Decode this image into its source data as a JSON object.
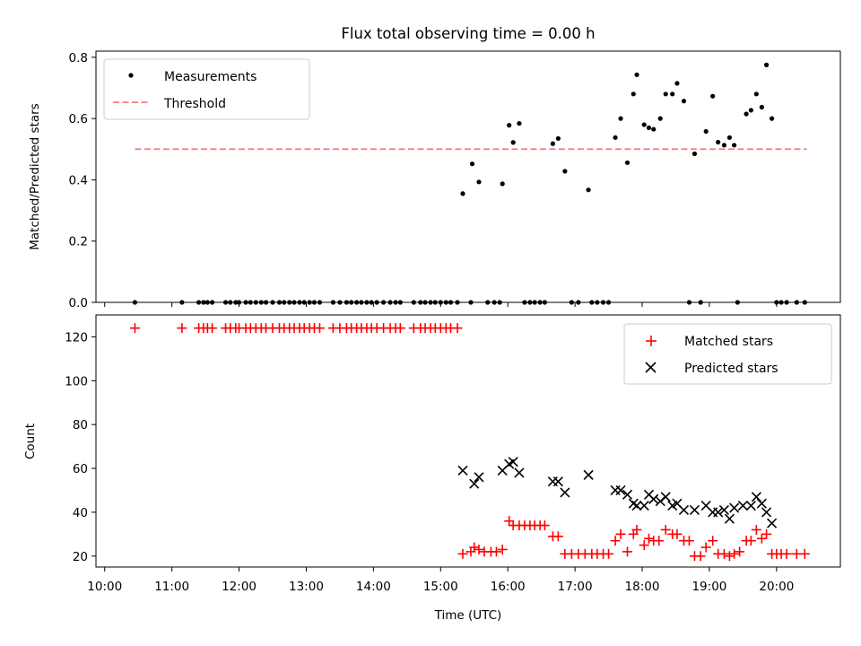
{
  "chart_data": [
    {
      "type": "scatter",
      "title": "Flux total observing time = 0.00 h",
      "xlabel": "",
      "ylabel": "Matched/Predicted stars",
      "ylim": [
        0,
        0.82
      ],
      "yticks": [
        0,
        0.2,
        0.4,
        0.6,
        0.8
      ],
      "ytick_labels": [
        "0.0",
        "0.2",
        "0.4",
        "0.6",
        "0.8"
      ],
      "xlim": [
        9.87,
        20.95
      ],
      "legend_position": "top-left",
      "grid": false,
      "series": [
        {
          "name": "Measurements",
          "color": "#000000",
          "marker": "dot",
          "points": [
            [
              10.45,
              0
            ],
            [
              11.15,
              0
            ],
            [
              11.4,
              0
            ],
            [
              11.47,
              0
            ],
            [
              11.53,
              0
            ],
            [
              11.6,
              0
            ],
            [
              11.8,
              0
            ],
            [
              11.87,
              0
            ],
            [
              11.95,
              0
            ],
            [
              12.0,
              0
            ],
            [
              12.1,
              0
            ],
            [
              12.17,
              0
            ],
            [
              12.25,
              0
            ],
            [
              12.33,
              0
            ],
            [
              12.4,
              0
            ],
            [
              12.5,
              0
            ],
            [
              12.6,
              0
            ],
            [
              12.67,
              0
            ],
            [
              12.75,
              0
            ],
            [
              12.82,
              0
            ],
            [
              12.9,
              0
            ],
            [
              12.97,
              0
            ],
            [
              13.05,
              0
            ],
            [
              13.12,
              0
            ],
            [
              13.2,
              0
            ],
            [
              13.4,
              0
            ],
            [
              13.5,
              0
            ],
            [
              13.6,
              0
            ],
            [
              13.67,
              0
            ],
            [
              13.75,
              0
            ],
            [
              13.82,
              0
            ],
            [
              13.9,
              0
            ],
            [
              13.97,
              0
            ],
            [
              14.05,
              0
            ],
            [
              14.15,
              0
            ],
            [
              14.25,
              0
            ],
            [
              14.33,
              0
            ],
            [
              14.4,
              0
            ],
            [
              14.6,
              0
            ],
            [
              14.7,
              0
            ],
            [
              14.77,
              0
            ],
            [
              14.85,
              0
            ],
            [
              14.92,
              0
            ],
            [
              15.0,
              0
            ],
            [
              15.08,
              0
            ],
            [
              15.15,
              0
            ],
            [
              15.25,
              0
            ],
            [
              15.45,
              0
            ],
            [
              15.7,
              0
            ],
            [
              15.8,
              0
            ],
            [
              15.88,
              0
            ],
            [
              16.25,
              0
            ],
            [
              16.33,
              0
            ],
            [
              16.4,
              0
            ],
            [
              16.48,
              0
            ],
            [
              16.55,
              0
            ],
            [
              16.95,
              0
            ],
            [
              17.05,
              0
            ],
            [
              17.25,
              0
            ],
            [
              17.33,
              0
            ],
            [
              17.42,
              0
            ],
            [
              17.5,
              0
            ],
            [
              18.7,
              0
            ],
            [
              18.87,
              0
            ],
            [
              19.42,
              0
            ],
            [
              20.0,
              0
            ],
            [
              20.07,
              0
            ],
            [
              20.15,
              0
            ],
            [
              20.3,
              0
            ],
            [
              20.42,
              0
            ],
            [
              15.33,
              0.355
            ],
            [
              15.47,
              0.452
            ],
            [
              15.57,
              0.393
            ],
            [
              15.92,
              0.387
            ],
            [
              16.02,
              0.578
            ],
            [
              16.08,
              0.522
            ],
            [
              16.17,
              0.584
            ],
            [
              16.67,
              0.518
            ],
            [
              16.75,
              0.535
            ],
            [
              16.85,
              0.428
            ],
            [
              17.2,
              0.367
            ],
            [
              17.6,
              0.538
            ],
            [
              17.68,
              0.6
            ],
            [
              17.78,
              0.456
            ],
            [
              17.87,
              0.68
            ],
            [
              17.92,
              0.743
            ],
            [
              18.03,
              0.58
            ],
            [
              18.1,
              0.57
            ],
            [
              18.17,
              0.565
            ],
            [
              18.27,
              0.6
            ],
            [
              18.35,
              0.68
            ],
            [
              18.45,
              0.68
            ],
            [
              18.52,
              0.715
            ],
            [
              18.62,
              0.657
            ],
            [
              18.78,
              0.485
            ],
            [
              18.95,
              0.558
            ],
            [
              19.05,
              0.673
            ],
            [
              19.13,
              0.523
            ],
            [
              19.22,
              0.513
            ],
            [
              19.3,
              0.538
            ],
            [
              19.37,
              0.513
            ],
            [
              19.55,
              0.615
            ],
            [
              19.62,
              0.627
            ],
            [
              19.7,
              0.68
            ],
            [
              19.78,
              0.637
            ],
            [
              19.85,
              0.775
            ],
            [
              19.93,
              0.6
            ]
          ]
        },
        {
          "name": "Threshold",
          "color": "#ff7777",
          "style": "dashed",
          "points": [
            [
              10.45,
              0.5
            ],
            [
              20.45,
              0.5
            ]
          ]
        }
      ]
    },
    {
      "type": "scatter",
      "title": "",
      "xlabel": "Time (UTC)",
      "ylabel": "Count",
      "ylim": [
        15,
        130
      ],
      "yticks": [
        20,
        40,
        60,
        80,
        100,
        120
      ],
      "ytick_labels": [
        "20",
        "40",
        "60",
        "80",
        "100",
        "120"
      ],
      "xlim": [
        9.87,
        20.95
      ],
      "xticks": [
        10,
        11,
        12,
        13,
        14,
        15,
        16,
        17,
        18,
        19,
        20
      ],
      "xtick_labels": [
        "10:00",
        "11:00",
        "12:00",
        "13:00",
        "14:00",
        "15:00",
        "16:00",
        "17:00",
        "18:00",
        "19:00",
        "20:00"
      ],
      "legend_position": "top-right",
      "grid": false,
      "series": [
        {
          "name": "Matched stars",
          "color": "#ff0000",
          "marker": "plus",
          "points": [
            [
              10.45,
              124
            ],
            [
              11.15,
              124
            ],
            [
              11.4,
              124
            ],
            [
              11.47,
              124
            ],
            [
              11.53,
              124
            ],
            [
              11.6,
              124
            ],
            [
              11.8,
              124
            ],
            [
              11.87,
              124
            ],
            [
              11.95,
              124
            ],
            [
              12.0,
              124
            ],
            [
              12.1,
              124
            ],
            [
              12.17,
              124
            ],
            [
              12.25,
              124
            ],
            [
              12.33,
              124
            ],
            [
              12.4,
              124
            ],
            [
              12.5,
              124
            ],
            [
              12.6,
              124
            ],
            [
              12.67,
              124
            ],
            [
              12.75,
              124
            ],
            [
              12.82,
              124
            ],
            [
              12.9,
              124
            ],
            [
              12.97,
              124
            ],
            [
              13.05,
              124
            ],
            [
              13.12,
              124
            ],
            [
              13.2,
              124
            ],
            [
              13.4,
              124
            ],
            [
              13.5,
              124
            ],
            [
              13.6,
              124
            ],
            [
              13.67,
              124
            ],
            [
              13.75,
              124
            ],
            [
              13.82,
              124
            ],
            [
              13.9,
              124
            ],
            [
              13.97,
              124
            ],
            [
              14.05,
              124
            ],
            [
              14.15,
              124
            ],
            [
              14.25,
              124
            ],
            [
              14.33,
              124
            ],
            [
              14.4,
              124
            ],
            [
              14.6,
              124
            ],
            [
              14.7,
              124
            ],
            [
              14.77,
              124
            ],
            [
              14.85,
              124
            ],
            [
              14.92,
              124
            ],
            [
              15.0,
              124
            ],
            [
              15.08,
              124
            ],
            [
              15.15,
              124
            ],
            [
              15.25,
              124
            ],
            [
              15.33,
              21
            ],
            [
              15.45,
              22
            ],
            [
              15.5,
              24
            ],
            [
              15.57,
              23
            ],
            [
              15.65,
              22
            ],
            [
              15.75,
              22
            ],
            [
              15.83,
              22
            ],
            [
              15.92,
              23
            ],
            [
              16.02,
              36
            ],
            [
              16.08,
              34
            ],
            [
              16.17,
              34
            ],
            [
              16.25,
              34
            ],
            [
              16.33,
              34
            ],
            [
              16.4,
              34
            ],
            [
              16.48,
              34
            ],
            [
              16.55,
              34
            ],
            [
              16.67,
              29
            ],
            [
              16.75,
              29
            ],
            [
              16.85,
              21
            ],
            [
              16.95,
              21
            ],
            [
              17.05,
              21
            ],
            [
              17.15,
              21
            ],
            [
              17.25,
              21
            ],
            [
              17.33,
              21
            ],
            [
              17.42,
              21
            ],
            [
              17.5,
              21
            ],
            [
              17.6,
              27
            ],
            [
              17.68,
              30
            ],
            [
              17.78,
              22
            ],
            [
              17.87,
              30
            ],
            [
              17.92,
              32
            ],
            [
              18.03,
              25
            ],
            [
              18.1,
              28
            ],
            [
              18.17,
              27
            ],
            [
              18.25,
              27
            ],
            [
              18.35,
              32
            ],
            [
              18.45,
              30
            ],
            [
              18.52,
              30
            ],
            [
              18.62,
              27
            ],
            [
              18.7,
              27
            ],
            [
              18.78,
              20
            ],
            [
              18.87,
              20
            ],
            [
              18.95,
              24
            ],
            [
              19.05,
              27
            ],
            [
              19.13,
              21
            ],
            [
              19.22,
              21
            ],
            [
              19.3,
              20
            ],
            [
              19.37,
              21
            ],
            [
              19.45,
              22
            ],
            [
              19.55,
              27
            ],
            [
              19.62,
              27
            ],
            [
              19.7,
              32
            ],
            [
              19.78,
              28
            ],
            [
              19.85,
              30
            ],
            [
              19.93,
              21
            ],
            [
              20.0,
              21
            ],
            [
              20.07,
              21
            ],
            [
              20.15,
              21
            ],
            [
              20.3,
              21
            ],
            [
              20.42,
              21
            ]
          ]
        },
        {
          "name": "Predicted stars",
          "color": "#000000",
          "marker": "x",
          "points": [
            [
              15.33,
              59
            ],
            [
              15.5,
              53
            ],
            [
              15.57,
              56
            ],
            [
              15.92,
              59
            ],
            [
              16.02,
              62
            ],
            [
              16.08,
              63
            ],
            [
              16.17,
              58
            ],
            [
              16.67,
              54
            ],
            [
              16.75,
              54
            ],
            [
              16.85,
              49
            ],
            [
              17.2,
              57
            ],
            [
              17.6,
              50
            ],
            [
              17.68,
              50
            ],
            [
              17.78,
              48
            ],
            [
              17.87,
              44
            ],
            [
              17.92,
              43
            ],
            [
              18.03,
              43
            ],
            [
              18.1,
              48
            ],
            [
              18.17,
              46
            ],
            [
              18.27,
              45
            ],
            [
              18.35,
              47
            ],
            [
              18.45,
              43
            ],
            [
              18.52,
              44
            ],
            [
              18.62,
              41
            ],
            [
              18.78,
              41
            ],
            [
              18.95,
              43
            ],
            [
              19.05,
              40
            ],
            [
              19.13,
              40
            ],
            [
              19.22,
              41
            ],
            [
              19.3,
              37
            ],
            [
              19.37,
              42
            ],
            [
              19.5,
              43
            ],
            [
              19.62,
              43
            ],
            [
              19.7,
              47
            ],
            [
              19.78,
              44
            ],
            [
              19.85,
              40
            ],
            [
              19.93,
              35
            ]
          ]
        }
      ]
    }
  ]
}
